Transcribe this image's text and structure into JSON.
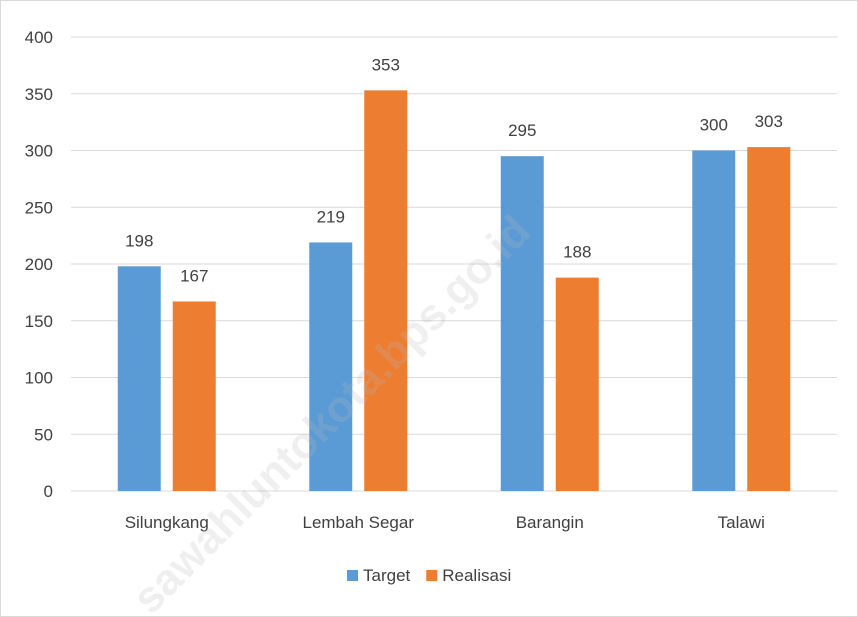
{
  "chart_data": {
    "type": "bar",
    "categories": [
      "Silungkang",
      "Lembah Segar",
      "Barangin",
      "Talawi"
    ],
    "series": [
      {
        "name": "Target",
        "values": [
          198,
          219,
          295,
          300
        ],
        "color": "#5b9bd5"
      },
      {
        "name": "Realisasi",
        "values": [
          167,
          353,
          188,
          303
        ],
        "color": "#ed7d31"
      }
    ],
    "ylim": [
      0,
      400
    ],
    "yticks": [
      "0",
      "50",
      "100",
      "150",
      "200",
      "250",
      "300",
      "350",
      "400"
    ],
    "grid": true,
    "legend_position": "bottom",
    "title": "",
    "xlabel": "",
    "ylabel": ""
  },
  "watermark": "sawahluntokota.bps.go.id"
}
